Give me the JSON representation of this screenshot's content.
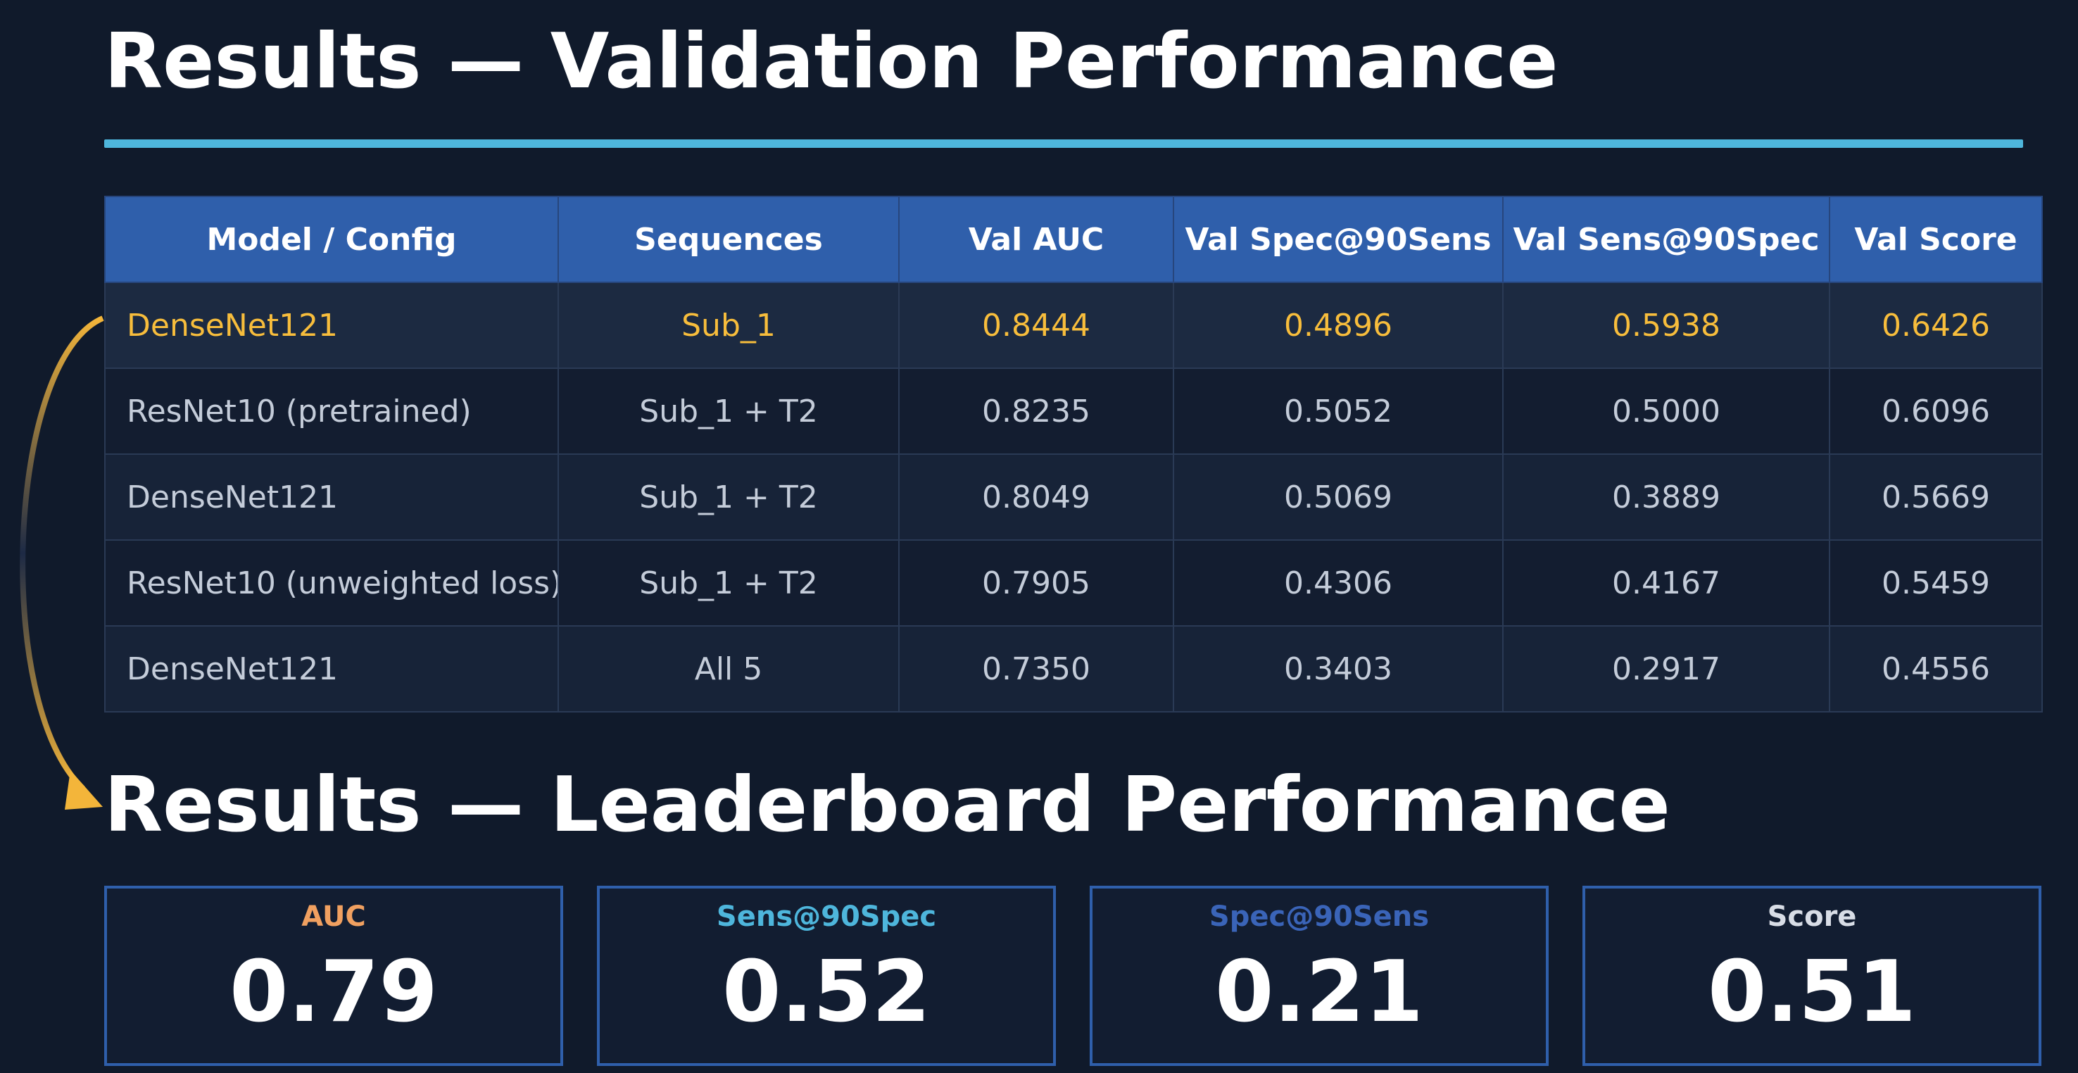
{
  "titles": {
    "validation": "Results — Validation Performance",
    "leaderboard": "Results — Leaderboard Performance"
  },
  "table": {
    "columns": [
      "Model / Config",
      "Sequences",
      "Val AUC",
      "Val Spec@90Sens",
      "Val Sens@90Spec",
      "Val Score"
    ],
    "rows": [
      [
        "DenseNet121",
        "Sub_1",
        "0.8444",
        "0.4896",
        "0.5938",
        "0.6426"
      ],
      [
        "ResNet10 (pretrained)",
        "Sub_1 + T2",
        "0.8235",
        "0.5052",
        "0.5000",
        "0.6096"
      ],
      [
        "DenseNet121",
        "Sub_1 + T2",
        "0.8049",
        "0.5069",
        "0.3889",
        "0.5669"
      ],
      [
        "ResNet10 (unweighted loss)",
        "Sub_1 + T2",
        "0.7905",
        "0.4306",
        "0.4167",
        "0.5459"
      ],
      [
        "DenseNet121",
        "All 5",
        "0.7350",
        "0.3403",
        "0.2917",
        "0.4556"
      ]
    ]
  },
  "leaderboard": [
    {
      "label": "AUC",
      "value": "0.79",
      "color": "#f0a060"
    },
    {
      "label": "Sens@90Spec",
      "value": "0.52",
      "color": "#4eb6dc"
    },
    {
      "label": "Spec@90Sens",
      "value": "0.21",
      "color": "#3a64b8"
    },
    {
      "label": "Score",
      "value": "0.51",
      "color": "#d8dde6"
    }
  ],
  "colors": {
    "background": "#101a2b",
    "accent_rule": "#4eb6dc",
    "header_fill": "#2f5fab",
    "highlight_text": "#f7bd3c",
    "arrow": "#f3b53a"
  }
}
